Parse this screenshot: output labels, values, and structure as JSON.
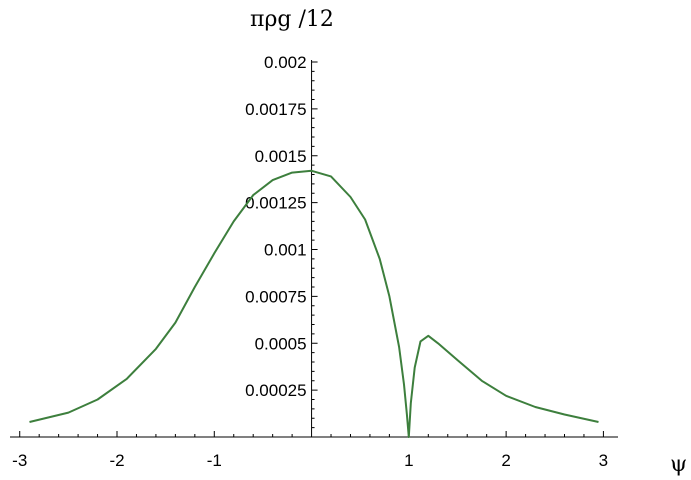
{
  "chart_data": {
    "type": "line",
    "title": "",
    "xlabel": "ψ",
    "ylabel": "πρg /12",
    "xlim": [
      -3.1,
      3.15
    ],
    "ylim": [
      0,
      0.002
    ],
    "x_ticks": [
      -3,
      -2,
      -1,
      1,
      2,
      3
    ],
    "x_tick_labels": [
      "-3",
      "-2",
      "-1",
      "1",
      "2",
      "3"
    ],
    "y_ticks": [
      0.00025,
      0.0005,
      0.00075,
      0.001,
      0.00125,
      0.0015,
      0.00175,
      0.002
    ],
    "y_tick_labels": [
      "0.00025",
      "0.0005",
      "0.00075",
      "0.001",
      "0.00125",
      "0.0015",
      "0.00175",
      "0.002"
    ],
    "grid": false,
    "series": [
      {
        "color": "#3d7f3d",
        "x": [
          -2.9,
          -2.5,
          -2.2,
          -1.9,
          -1.6,
          -1.4,
          -1.2,
          -1.0,
          -0.8,
          -0.6,
          -0.4,
          -0.2,
          0.0,
          0.2,
          0.4,
          0.55,
          0.7,
          0.8,
          0.9,
          0.95,
          0.98,
          1.0,
          1.02,
          1.06,
          1.12,
          1.2,
          1.3,
          1.5,
          1.75,
          2.0,
          2.3,
          2.6,
          2.95
        ],
        "y": [
          8e-05,
          0.00013,
          0.0002,
          0.00031,
          0.00047,
          0.00061,
          0.0008,
          0.00098,
          0.00115,
          0.00129,
          0.00137,
          0.00141,
          0.00142,
          0.00139,
          0.00128,
          0.00116,
          0.00095,
          0.00075,
          0.00048,
          0.00028,
          0.00012,
          0.0,
          0.00018,
          0.00037,
          0.00051,
          0.00054,
          0.0005,
          0.00041,
          0.0003,
          0.00022,
          0.00016,
          0.00012,
          8e-05
        ]
      }
    ]
  }
}
